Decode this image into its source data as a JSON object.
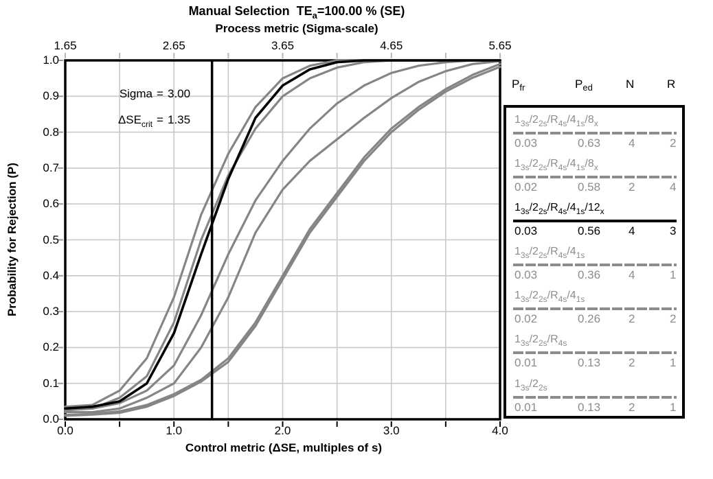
{
  "colors": {
    "curve_gray": "#858585",
    "curve_black": "#000000",
    "grid": "#c8c8c8",
    "legend_gray": "#8c8c8c",
    "tick_top": "#b8b8b8",
    "tick_left": "#9a9a9a",
    "tick_bottom": "#000000"
  },
  "title": {
    "line1_prefix": "Manual Selection  TE",
    "line1_sub": "a",
    "line1_suffix": "=100.00 % (SE)",
    "line2": "Process metric (Sigma-scale)"
  },
  "axes": {
    "top": {
      "label": "Process metric (Sigma-scale)",
      "ticks": [
        "1.65",
        "2.65",
        "3.65",
        "4.65",
        "5.65"
      ]
    },
    "bottom": {
      "label": "Control metric (ΔSE, multiples of s)",
      "ticks": [
        "0.0",
        "1.0",
        "2.0",
        "3.0",
        "4.0"
      ]
    },
    "left": {
      "label": "Probability for Rejection (P)",
      "ticks": [
        "1.0",
        "0.9",
        "0.8",
        "0.7",
        "0.6",
        "0.5",
        "0.4",
        "0.3",
        "0.2",
        "0.1",
        "0.0"
      ]
    }
  },
  "annotation": {
    "sigma_label": "Sigma",
    "eq1": "=",
    "sigma_value": "3.00",
    "dse_base": "ΔSE",
    "dse_sub": "crit",
    "eq2": "=",
    "dse_value": "1.35"
  },
  "legend": {
    "headers": [
      {
        "base": "P",
        "sub": "fr"
      },
      {
        "base": "P",
        "sub": "ed"
      },
      {
        "base": "N",
        "sub": ""
      },
      {
        "base": "R",
        "sub": ""
      }
    ],
    "rows": [
      {
        "rule": [
          {
            "base": "1",
            "sub": "3s"
          },
          {
            "base": "2",
            "sub": "2s"
          },
          {
            "base": "R",
            "sub": "4s"
          },
          {
            "base": "4",
            "sub": "1s"
          },
          {
            "base": "8",
            "sub": "x"
          }
        ],
        "pfr": "0.03",
        "ped": "0.63",
        "n": "4",
        "r": "2",
        "selected": false
      },
      {
        "rule": [
          {
            "base": "1",
            "sub": "3s"
          },
          {
            "base": "2",
            "sub": "2s"
          },
          {
            "base": "R",
            "sub": "4s"
          },
          {
            "base": "4",
            "sub": "1s"
          },
          {
            "base": "8",
            "sub": "x"
          }
        ],
        "pfr": "0.02",
        "ped": "0.58",
        "n": "2",
        "r": "4",
        "selected": false
      },
      {
        "rule": [
          {
            "base": "1",
            "sub": "3s"
          },
          {
            "base": "2",
            "sub": "2s"
          },
          {
            "base": "R",
            "sub": "4s"
          },
          {
            "base": "4",
            "sub": "1s"
          },
          {
            "base": "12",
            "sub": "x"
          }
        ],
        "pfr": "0.03",
        "ped": "0.56",
        "n": "4",
        "r": "3",
        "selected": true
      },
      {
        "rule": [
          {
            "base": "1",
            "sub": "3s"
          },
          {
            "base": "2",
            "sub": "2s"
          },
          {
            "base": "R",
            "sub": "4s"
          },
          {
            "base": "4",
            "sub": "1s"
          }
        ],
        "pfr": "0.03",
        "ped": "0.36",
        "n": "4",
        "r": "1",
        "selected": false
      },
      {
        "rule": [
          {
            "base": "1",
            "sub": "3s"
          },
          {
            "base": "2",
            "sub": "2s"
          },
          {
            "base": "R",
            "sub": "4s"
          },
          {
            "base": "4",
            "sub": "1s"
          }
        ],
        "pfr": "0.02",
        "ped": "0.26",
        "n": "2",
        "r": "2",
        "selected": false
      },
      {
        "rule": [
          {
            "base": "1",
            "sub": "3s"
          },
          {
            "base": "2",
            "sub": "2s"
          },
          {
            "base": "R",
            "sub": "4s"
          }
        ],
        "pfr": "0.01",
        "ped": "0.13",
        "n": "2",
        "r": "1",
        "selected": false
      },
      {
        "rule": [
          {
            "base": "1",
            "sub": "3s"
          },
          {
            "base": "2",
            "sub": "2s"
          }
        ],
        "pfr": "0.01",
        "ped": "0.13",
        "n": "2",
        "r": "1",
        "selected": false
      }
    ]
  },
  "chart_data": {
    "type": "line",
    "title": "Manual Selection TEa=100.00 % (SE)",
    "xlabel": "Control metric (ΔSE, multiples of s)",
    "x2label": "Process metric (Sigma-scale)",
    "ylabel": "Probability for Rejection (P)",
    "xlim": [
      0,
      4
    ],
    "x2lim": [
      1.65,
      5.65
    ],
    "ylim": [
      0,
      1
    ],
    "grid": true,
    "sigma": 3.0,
    "dse_crit": 1.35,
    "vline": {
      "x": 1.35,
      "color": "#000000"
    },
    "x": [
      0,
      0.25,
      0.5,
      0.75,
      1.0,
      1.25,
      1.5,
      1.75,
      2.0,
      2.25,
      2.5,
      2.75,
      3.0,
      3.25,
      3.5,
      3.75,
      4.0
    ],
    "series": [
      {
        "name": "13s/22s/R4s/41s/8x N=4 R=2",
        "color": "#858585",
        "selected": false,
        "values": [
          0.035,
          0.04,
          0.08,
          0.17,
          0.34,
          0.57,
          0.74,
          0.87,
          0.95,
          0.985,
          1.0,
          1.0,
          1.0,
          1.0,
          1.0,
          1.0,
          1.0
        ]
      },
      {
        "name": "13s/22s/R4s/41s/8x N=2 R=4",
        "color": "#858585",
        "selected": false,
        "values": [
          0.025,
          0.03,
          0.06,
          0.12,
          0.27,
          0.5,
          0.68,
          0.81,
          0.9,
          0.95,
          0.98,
          0.995,
          1.0,
          1.0,
          1.0,
          1.0,
          1.0
        ]
      },
      {
        "name": "13s/22s/R4s/41s/12x N=4 R=3",
        "color": "#000000",
        "selected": true,
        "values": [
          0.03,
          0.035,
          0.05,
          0.1,
          0.24,
          0.46,
          0.67,
          0.84,
          0.93,
          0.975,
          0.995,
          1.0,
          1.0,
          1.0,
          1.0,
          1.0,
          1.0
        ]
      },
      {
        "name": "13s/22s/R4s/41s N=4 R=1",
        "color": "#858585",
        "selected": false,
        "values": [
          0.028,
          0.03,
          0.045,
          0.08,
          0.15,
          0.29,
          0.46,
          0.61,
          0.72,
          0.81,
          0.88,
          0.93,
          0.965,
          0.985,
          0.995,
          1.0,
          1.0
        ]
      },
      {
        "name": "13s/22s/R4s/41s N=2 R=2",
        "color": "#858585",
        "selected": false,
        "values": [
          0.02,
          0.02,
          0.03,
          0.06,
          0.1,
          0.2,
          0.34,
          0.52,
          0.64,
          0.72,
          0.78,
          0.84,
          0.895,
          0.94,
          0.97,
          0.99,
          0.998
        ]
      },
      {
        "name": "13s/22s/R4s N=2 R=1",
        "color": "#858585",
        "selected": false,
        "values": [
          0.012,
          0.015,
          0.022,
          0.04,
          0.07,
          0.11,
          0.17,
          0.27,
          0.4,
          0.53,
          0.63,
          0.73,
          0.81,
          0.87,
          0.92,
          0.96,
          0.99
        ]
      },
      {
        "name": "13s/22s N=2 R=1",
        "color": "#858585",
        "selected": false,
        "values": [
          0.01,
          0.013,
          0.018,
          0.035,
          0.065,
          0.105,
          0.16,
          0.26,
          0.39,
          0.52,
          0.62,
          0.72,
          0.8,
          0.862,
          0.913,
          0.952,
          0.982
        ]
      }
    ]
  }
}
